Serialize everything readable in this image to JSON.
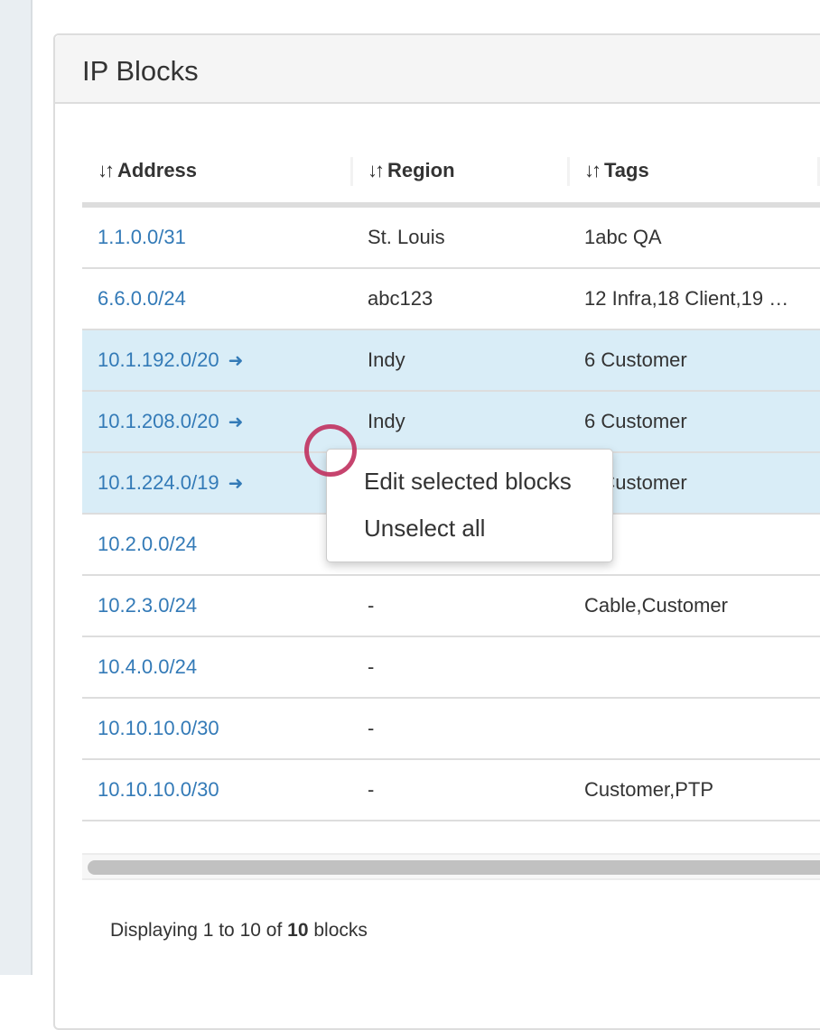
{
  "panel": {
    "title": "IP Blocks"
  },
  "table": {
    "columns": [
      {
        "label": "Address",
        "sort_icon": "sort-icon"
      },
      {
        "label": "Region",
        "sort_icon": "sort-icon"
      },
      {
        "label": "Tags",
        "sort_icon": "sort-icon"
      }
    ],
    "rows": [
      {
        "address": "1.1.0.0/31",
        "region": "St. Louis",
        "tags": "1abc QA",
        "selected": false
      },
      {
        "address": "6.6.0.0/24",
        "region": "abc123",
        "tags": "12 Infra,18 Client,19 …",
        "selected": false
      },
      {
        "address": "10.1.192.0/20",
        "region": "Indy",
        "tags": "6 Customer",
        "selected": true
      },
      {
        "address": "10.1.208.0/20",
        "region": "Indy",
        "tags": "6 Customer",
        "selected": true
      },
      {
        "address": "10.1.224.0/19",
        "region": "",
        "tags": "6 Customer",
        "selected": true
      },
      {
        "address": "10.2.0.0/24",
        "region": "",
        "tags": "",
        "selected": false
      },
      {
        "address": "10.2.3.0/24",
        "region": "-",
        "tags": "Cable,Customer",
        "selected": false
      },
      {
        "address": "10.4.0.0/24",
        "region": "-",
        "tags": "",
        "selected": false
      },
      {
        "address": "10.10.10.0/30",
        "region": "-",
        "tags": "",
        "selected": false
      },
      {
        "address": "10.10.10.0/30",
        "region": "-",
        "tags": "Customer,PTP",
        "selected": false
      }
    ],
    "selected_row_color": "#d9edf7",
    "link_color": "#337ab7"
  },
  "context_menu": {
    "items": [
      "Edit selected blocks",
      "Unselect all"
    ]
  },
  "footer": {
    "prefix": "Displaying 1 to 10 of",
    "total": "10",
    "suffix": "blocks"
  }
}
